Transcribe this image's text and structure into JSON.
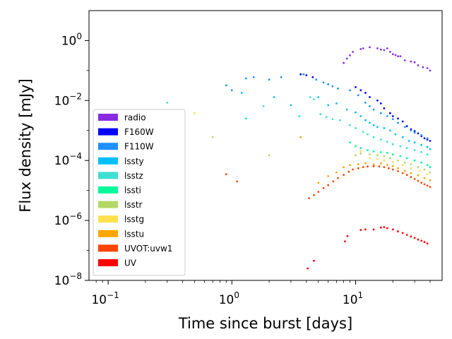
{
  "chart_data": {
    "type": "scatter",
    "xlabel": "Time since burst [days]",
    "ylabel": "Flux density [mJy]",
    "xscale": "log",
    "yscale": "log",
    "xlim": [
      0.07,
      50
    ],
    "ylim": [
      1e-08,
      10
    ],
    "x_ticks": [
      {
        "base": "10",
        "exp": "−1",
        "value": 0.1
      },
      {
        "base": "10",
        "exp": "0",
        "value": 1
      },
      {
        "base": "10",
        "exp": "1",
        "value": 10
      }
    ],
    "y_ticks": [
      {
        "base": "10",
        "exp": "−8",
        "value": 1e-08
      },
      {
        "base": "10",
        "exp": "−6",
        "value": 1e-06
      },
      {
        "base": "10",
        "exp": "−4",
        "value": 0.0001
      },
      {
        "base": "10",
        "exp": "−2",
        "value": 0.01
      },
      {
        "base": "10",
        "exp": "0",
        "value": 1
      }
    ],
    "grid": false,
    "legend_position": "lower-left",
    "legend": [
      {
        "label": "radio",
        "color": "#8a2be2"
      },
      {
        "label": "F160W",
        "color": "#0000ff"
      },
      {
        "label": "F110W",
        "color": "#1e90ff"
      },
      {
        "label": "lssty",
        "color": "#00bfff"
      },
      {
        "label": "lsstz",
        "color": "#40e0d0"
      },
      {
        "label": "lssti",
        "color": "#00fa9a"
      },
      {
        "label": "lsstr",
        "color": "#b4d866"
      },
      {
        "label": "lsstg",
        "color": "#ffe04d"
      },
      {
        "label": "lsstu",
        "color": "#ffa500"
      },
      {
        "label": "UVOT:uvw1",
        "color": "#ff4500"
      },
      {
        "label": "UV",
        "color": "#ff0000"
      }
    ],
    "series": [
      {
        "color": "#8a2be2",
        "points": [
          [
            8,
            0.18
          ],
          [
            8.5,
            0.25
          ],
          [
            9,
            0.32
          ],
          [
            9.5,
            0.42
          ],
          [
            11,
            0.52
          ],
          [
            11.5,
            0.55
          ],
          [
            13,
            0.6
          ],
          [
            15,
            0.55
          ],
          [
            16,
            0.5
          ],
          [
            17,
            0.48
          ],
          [
            18,
            0.55
          ],
          [
            19,
            0.42
          ],
          [
            20,
            0.35
          ],
          [
            21,
            0.33
          ],
          [
            22,
            0.3
          ],
          [
            23,
            0.3
          ],
          [
            25,
            0.22
          ],
          [
            28,
            0.2
          ],
          [
            30,
            0.19
          ],
          [
            32,
            0.15
          ],
          [
            35,
            0.13
          ],
          [
            38,
            0.12
          ],
          [
            40,
            0.1
          ]
        ]
      },
      {
        "color": "#0000ff",
        "points": [
          [
            3.6,
            0.075
          ],
          [
            4.0,
            0.07
          ],
          [
            4.5,
            0.06
          ],
          [
            10,
            0.028
          ],
          [
            11,
            0.022
          ],
          [
            12,
            0.018
          ],
          [
            13,
            0.013
          ],
          [
            15,
            0.01
          ],
          [
            16,
            0.008
          ],
          [
            17,
            0.0055
          ],
          [
            19,
            0.0038
          ],
          [
            20,
            0.003
          ],
          [
            22,
            0.0025
          ],
          [
            24,
            0.002
          ],
          [
            26,
            0.0014
          ],
          [
            28,
            0.0011
          ],
          [
            30,
            0.00095
          ],
          [
            32,
            0.0008
          ],
          [
            34,
            0.00065
          ],
          [
            36,
            0.00055
          ],
          [
            38,
            0.0005
          ],
          [
            40,
            0.00045
          ]
        ]
      },
      {
        "color": "#1e90ff",
        "points": [
          [
            0.9,
            0.032
          ],
          [
            1.0,
            0.022
          ],
          [
            1.3,
            0.055
          ],
          [
            1.5,
            0.06
          ],
          [
            2.0,
            0.05
          ],
          [
            2.5,
            0.06
          ],
          [
            3.8,
            0.075
          ],
          [
            4.8,
            0.05
          ],
          [
            5.5,
            0.04
          ],
          [
            6.0,
            0.035
          ],
          [
            6.5,
            0.03
          ],
          [
            7.2,
            0.025
          ],
          [
            9,
            0.022
          ],
          [
            10.5,
            0.015
          ],
          [
            12,
            0.0085
          ],
          [
            13,
            0.0065
          ],
          [
            14,
            0.005
          ],
          [
            16,
            0.0038
          ],
          [
            18,
            0.003
          ],
          [
            20,
            0.0024
          ],
          [
            22,
            0.0018
          ],
          [
            25,
            0.0013
          ],
          [
            28,
            0.001
          ],
          [
            30,
            0.00085
          ],
          [
            34,
            0.0007
          ],
          [
            38,
            0.00055
          ]
        ]
      },
      {
        "color": "#00bfff",
        "points": [
          [
            1.2,
            0.018
          ],
          [
            2.2,
            0.013
          ],
          [
            3,
            0.007
          ],
          [
            5,
            0.013
          ],
          [
            6,
            0.007
          ],
          [
            7,
            0.008
          ],
          [
            8.5,
            0.005
          ],
          [
            10,
            0.004
          ],
          [
            11,
            0.003
          ],
          [
            12,
            0.0022
          ],
          [
            13,
            0.0018
          ],
          [
            14,
            0.0015
          ],
          [
            15,
            0.0013
          ],
          [
            17,
            0.0012
          ],
          [
            19,
            0.001
          ],
          [
            21,
            0.00075
          ],
          [
            24,
            0.0006
          ],
          [
            27,
            0.00045
          ],
          [
            30,
            0.0004
          ],
          [
            34,
            0.00033
          ],
          [
            38,
            0.00028
          ],
          [
            40,
            0.00024
          ]
        ]
      },
      {
        "color": "#40e0d0",
        "points": [
          [
            0.3,
            0.0085
          ],
          [
            1.8,
            0.0065
          ],
          [
            4.3,
            0.013
          ],
          [
            4.6,
            0.011
          ],
          [
            5.2,
            0.0035
          ],
          [
            5.8,
            0.0028
          ],
          [
            6.5,
            0.0024
          ],
          [
            7.5,
            0.0022
          ],
          [
            9,
            0.0015
          ],
          [
            10,
            0.0012
          ],
          [
            11.5,
            0.0009
          ],
          [
            12.5,
            0.00075
          ],
          [
            14,
            0.0006
          ],
          [
            16,
            0.0005
          ],
          [
            18,
            0.00042
          ],
          [
            20,
            0.00035
          ],
          [
            23,
            0.0003
          ],
          [
            26,
            0.00026
          ],
          [
            30,
            0.00022
          ],
          [
            34,
            0.00019
          ],
          [
            38,
            0.00016
          ]
        ]
      },
      {
        "color": "#00fa9a",
        "points": [
          [
            1.3,
            0.0025
          ],
          [
            3.5,
            0.003
          ],
          [
            9,
            0.0004
          ],
          [
            10,
            0.0003
          ],
          [
            11,
            0.00026
          ],
          [
            12.5,
            0.00022
          ],
          [
            14,
            0.0002
          ],
          [
            16,
            0.00019
          ],
          [
            18,
            0.00018
          ],
          [
            20,
            0.00016
          ],
          [
            23,
            0.00014
          ],
          [
            26,
            0.00012
          ],
          [
            30,
            0.0001
          ],
          [
            34,
            8.5e-05
          ],
          [
            38,
            7e-05
          ],
          [
            40,
            6e-05
          ]
        ]
      },
      {
        "color": "#b4d866",
        "points": [
          [
            0.7,
            0.0006
          ],
          [
            2.0,
            0.00015
          ],
          [
            10,
            0.00015
          ],
          [
            11,
            0.00017
          ],
          [
            13,
            0.00016
          ],
          [
            15,
            0.00015
          ],
          [
            17,
            0.00014
          ],
          [
            19,
            0.00012
          ],
          [
            22,
            0.0001
          ],
          [
            25,
            8.5e-05
          ],
          [
            28,
            7.5e-05
          ],
          [
            32,
            6e-05
          ],
          [
            36,
            5e-05
          ],
          [
            40,
            4e-05
          ]
        ]
      },
      {
        "color": "#ffe04d",
        "points": [
          [
            0.5,
            0.0038
          ],
          [
            11,
            0.0002
          ],
          [
            13,
            0.00012
          ],
          [
            15,
            0.00011
          ],
          [
            17,
            0.0001
          ],
          [
            20,
            9e-05
          ],
          [
            24,
            7e-05
          ],
          [
            28,
            5.5e-05
          ],
          [
            33,
            4.5e-05
          ],
          [
            38,
            3.5e-05
          ]
        ]
      },
      {
        "color": "#ffa500",
        "points": [
          [
            3.6,
            0.0006
          ],
          [
            5.0,
            1.8e-05
          ],
          [
            6.0,
            3e-05
          ],
          [
            7.0,
            4e-05
          ],
          [
            8.0,
            6e-05
          ],
          [
            9.0,
            7e-05
          ],
          [
            10.5,
            7.5e-05
          ],
          [
            12,
            8e-05
          ],
          [
            14,
            7.5e-05
          ],
          [
            16,
            8e-05
          ],
          [
            18,
            7e-05
          ],
          [
            20,
            6.5e-05
          ],
          [
            22,
            5.5e-05
          ],
          [
            25,
            4.5e-05
          ],
          [
            28,
            3.8e-05
          ],
          [
            32,
            3.2e-05
          ],
          [
            36,
            2.6e-05
          ],
          [
            40,
            2.2e-05
          ]
        ]
      },
      {
        "color": "#ff4500",
        "points": [
          [
            0.9,
            3.5e-05
          ],
          [
            1.1,
            2e-05
          ],
          [
            4.2,
            5.5e-06
          ],
          [
            4.6,
            7e-06
          ],
          [
            5.0,
            9e-06
          ],
          [
            5.5,
            1.2e-05
          ],
          [
            6.0,
            1.5e-05
          ],
          [
            6.6,
            2e-05
          ],
          [
            7.2,
            2.6e-05
          ],
          [
            8.0,
            3.3e-05
          ],
          [
            8.8,
            4.2e-05
          ],
          [
            9.5,
            5e-05
          ],
          [
            10.5,
            5.5e-05
          ],
          [
            11.5,
            6e-05
          ],
          [
            12.5,
            6.3e-05
          ],
          [
            14,
            6.5e-05
          ],
          [
            15.5,
            6.3e-05
          ],
          [
            17,
            6e-05
          ],
          [
            18.5,
            5.5e-05
          ],
          [
            20,
            5e-05
          ],
          [
            22,
            4.4e-05
          ],
          [
            24,
            3.8e-05
          ],
          [
            26,
            3.3e-05
          ],
          [
            28,
            2.8e-05
          ],
          [
            30,
            2.4e-05
          ],
          [
            32,
            2.1e-05
          ],
          [
            34,
            1.8e-05
          ],
          [
            36,
            1.6e-05
          ],
          [
            38,
            1.45e-05
          ],
          [
            40,
            1.3e-05
          ]
        ]
      },
      {
        "color": "#ff0000",
        "points": [
          [
            4.1,
            2.5e-08
          ],
          [
            4.6,
            4.5e-08
          ],
          [
            8.2,
            2e-07
          ],
          [
            8.6,
            3e-07
          ],
          [
            11,
            4.8e-07
          ],
          [
            12,
            5e-07
          ],
          [
            14,
            5e-07
          ],
          [
            16,
            5.8e-07
          ],
          [
            17,
            6e-07
          ],
          [
            18,
            5.5e-07
          ],
          [
            20,
            5e-07
          ],
          [
            22,
            4.3e-07
          ],
          [
            24,
            3.8e-07
          ],
          [
            26,
            3.3e-07
          ],
          [
            28,
            2.9e-07
          ],
          [
            30,
            2.6e-07
          ],
          [
            32,
            2.3e-07
          ],
          [
            34,
            2.1e-07
          ],
          [
            36,
            1.9e-07
          ],
          [
            38,
            1.7e-07
          ]
        ]
      }
    ]
  }
}
